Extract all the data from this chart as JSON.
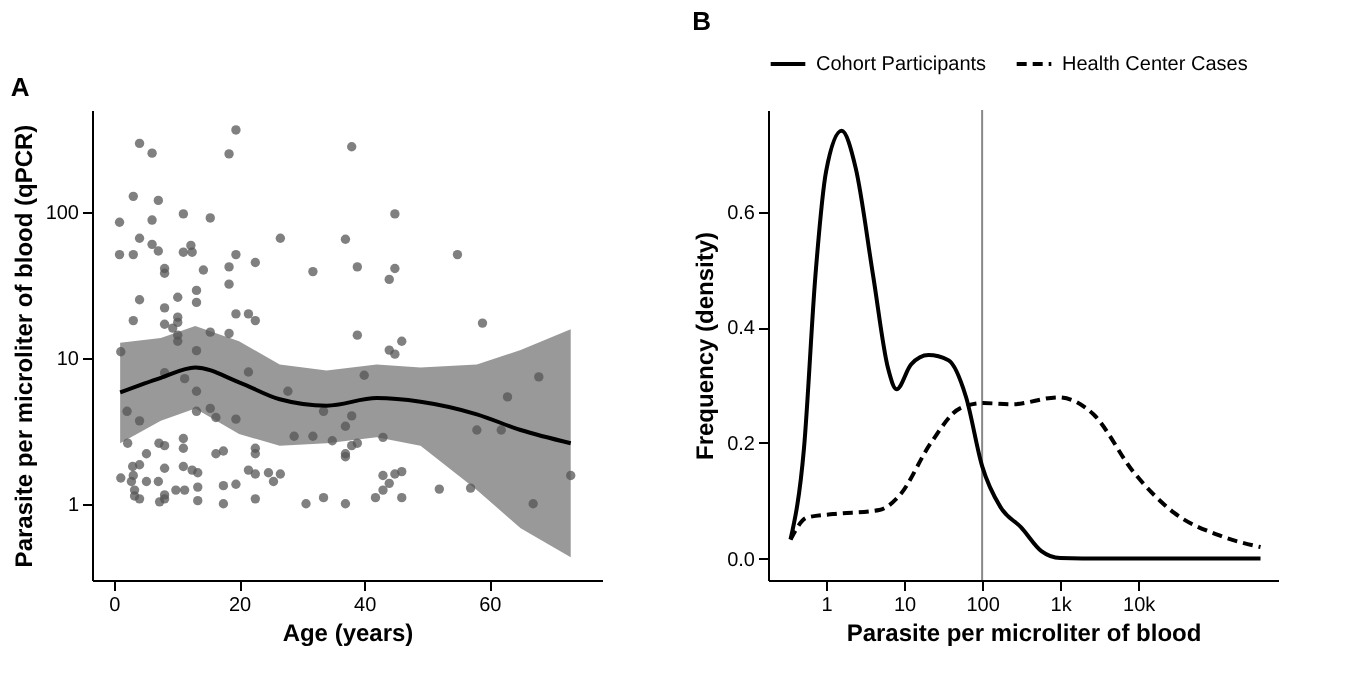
{
  "chart_data": [
    {
      "type": "scatter",
      "title": "A",
      "xlabel": "Age (years)",
      "ylabel": "Parasite per microliter of blood (qPCR)",
      "log": "y",
      "grid": false,
      "xlim": [
        -3.5,
        78
      ],
      "xticks": [
        0,
        20,
        40,
        60
      ],
      "ylim": [
        0.3,
        500
      ],
      "yticks": [
        1,
        10,
        100
      ],
      "series": [
        {
          "type": "scatter",
          "marker": "circle",
          "color": "#555555",
          "x": [
            0.9,
            0.9,
            1.1,
            1.1,
            2.1,
            2.2,
            2.8,
            3.1,
            3.1,
            3.1,
            3.0,
            3.1,
            3.3,
            3.3,
            4.1,
            4.1,
            4.1,
            4.1,
            4.1,
            4.1,
            5.2,
            5.2,
            6.1,
            6.1,
            6.1,
            7.1,
            7.1,
            7.2,
            7.1,
            7.3,
            8.1,
            8.1,
            8.1,
            8.1,
            8.1,
            8.1,
            8.1,
            8.1,
            8.1,
            9.4,
            9.9,
            10.2,
            10.2,
            10.2,
            10.2,
            10.2,
            11.1,
            11.1,
            11.3,
            11.1,
            11.1,
            11.1,
            11.3,
            12.3,
            12.5,
            12.5,
            13.2,
            13.2,
            13.2,
            13.2,
            13.2,
            13.4,
            13.4,
            13.4,
            14.3,
            15.4,
            15.4,
            15.4,
            16.3,
            16.3,
            17.5,
            17.5,
            17.5,
            18.4,
            18.4,
            18.4,
            18.4,
            19.5,
            19.5,
            19.5,
            19.5,
            19.5,
            21.5,
            21.5,
            21.5,
            22.6,
            22.6,
            22.6,
            22.6,
            22.6,
            22.6,
            24.7,
            25.5,
            26.6,
            26.6,
            27.8,
            28.8,
            30.7,
            31.8,
            31.8,
            33.5,
            33.5,
            34.9,
            37.0,
            37.0,
            37.0,
            37.0,
            37.0,
            38.0,
            38.0,
            38.0,
            38.9,
            38.9,
            38.9,
            40.0,
            41.8,
            43.0,
            43.0,
            43.0,
            44.0,
            44.0,
            44.0,
            44.9,
            44.9,
            44.9,
            44.9,
            46.0,
            46.0,
            46.0,
            52.0,
            54.9,
            57.0,
            58.0,
            58.9,
            61.9,
            62.9,
            67.0,
            67.9,
            73.0
          ],
          "values": [
            85,
            51,
            11,
            1.5,
            4.3,
            2.6,
            1.42,
            128,
            51,
            18,
            1.8,
            1.56,
            1.24,
            1.13,
            295,
            66,
            25,
            3.7,
            1.85,
            1.08,
            1.42,
            2.2,
            253,
            88,
            60,
            120,
            54,
            2.6,
            1.42,
            1.03,
            41,
            38,
            22,
            17,
            7.9,
            2.5,
            1.75,
            1.15,
            1.08,
            16,
            1.24,
            26,
            19,
            17.5,
            14.3,
            13,
            97,
            53,
            7.2,
            2.8,
            2.4,
            1.8,
            1.24,
            59,
            53,
            1.7,
            29,
            24,
            11.2,
            5.9,
            4.3,
            1.63,
            1.3,
            1.05,
            40,
            91,
            15,
            4.5,
            3.9,
            2.2,
            2.3,
            1.33,
            1.0,
            250,
            42,
            32,
            14.7,
            365,
            51,
            20,
            3.8,
            1.36,
            20,
            8.0,
            1.7,
            45,
            18,
            2.4,
            2.2,
            1.6,
            1.08,
            1.63,
            1.42,
            66,
            1.6,
            5.9,
            2.9,
            1.0,
            39,
            2.9,
            4.3,
            1.1,
            2.7,
            65,
            3.4,
            2.2,
            2.1,
            1.0,
            280,
            4.0,
            2.5,
            42,
            14.3,
            2.6,
            7.6,
            1.1,
            2.85,
            1.56,
            1.24,
            34.5,
            11.3,
            1.38,
            97,
            41,
            10.6,
            1.6,
            13,
            1.66,
            1.1,
            1.26,
            51,
            1.28,
            3.2,
            17.3,
            3.2,
            5.4,
            1.0,
            7.4,
            1.56
          ]
        },
        {
          "type": "line",
          "color": "#000000",
          "x": [
            1,
            7.5,
            13,
            20,
            26.5,
            34,
            42,
            49,
            58,
            65,
            73
          ],
          "values": [
            5.8,
            7.3,
            8.6,
            6.8,
            5.2,
            4.7,
            5.3,
            5.0,
            4.1,
            3.2,
            2.6
          ],
          "lower": [
            2.6,
            3.7,
            4.5,
            3.0,
            2.5,
            2.6,
            2.85,
            2.5,
            1.24,
            0.68,
            0.43
          ],
          "upper": [
            12.7,
            13.7,
            16.5,
            13,
            9.0,
            8.2,
            9.0,
            8.6,
            9.0,
            11.3,
            15.7
          ]
        }
      ]
    },
    {
      "type": "line",
      "title": "B",
      "xlabel": "Parasite per microliter of blood",
      "ylabel": "Frequency (density)",
      "log": "x",
      "grid": false,
      "legend": "top",
      "xlim": [
        0.18,
        620000
      ],
      "xticks": [
        1,
        10,
        100,
        {
          "value": 1000,
          "label": "1k"
        },
        {
          "value": 10000,
          "label": "10k"
        }
      ],
      "ylim": [
        -0.037,
        0.776
      ],
      "yticks": [
        {
          "value": 0,
          "label": "0.0"
        },
        0.2,
        0.4,
        0.6
      ],
      "ref_lines": [
        {
          "axis": "x",
          "value": 100,
          "color": "#888888"
        }
      ],
      "series": [
        {
          "name": "Cohort Participants",
          "color": "#000000",
          "line_style": "solid",
          "x": [
            0.35,
            0.52,
            0.73,
            1.0,
            1.58,
            2.4,
            4.0,
            6.2,
            8,
            12.3,
            20.5,
            37,
            62,
            100,
            172,
            316,
            575,
            1000,
            3700,
            370000
          ],
          "values": [
            0.033,
            0.19,
            0.49,
            0.67,
            0.74,
            0.675,
            0.49,
            0.33,
            0.293,
            0.336,
            0.352,
            0.343,
            0.28,
            0.16,
            0.089,
            0.054,
            0.013,
            0.001,
            0,
            0
          ]
        },
        {
          "name": "Health Center Cases",
          "color": "#000000",
          "line_style": "dashed",
          "x": [
            0.35,
            0.57,
            1.23,
            4.8,
            8.7,
            22,
            52,
            103,
            243,
            950,
            2650,
            8700,
            29000,
            110000,
            370000
          ],
          "values": [
            0.033,
            0.071,
            0.077,
            0.084,
            0.109,
            0.2,
            0.26,
            0.269,
            0.267,
            0.279,
            0.25,
            0.15,
            0.079,
            0.04,
            0.02
          ]
        }
      ]
    }
  ]
}
